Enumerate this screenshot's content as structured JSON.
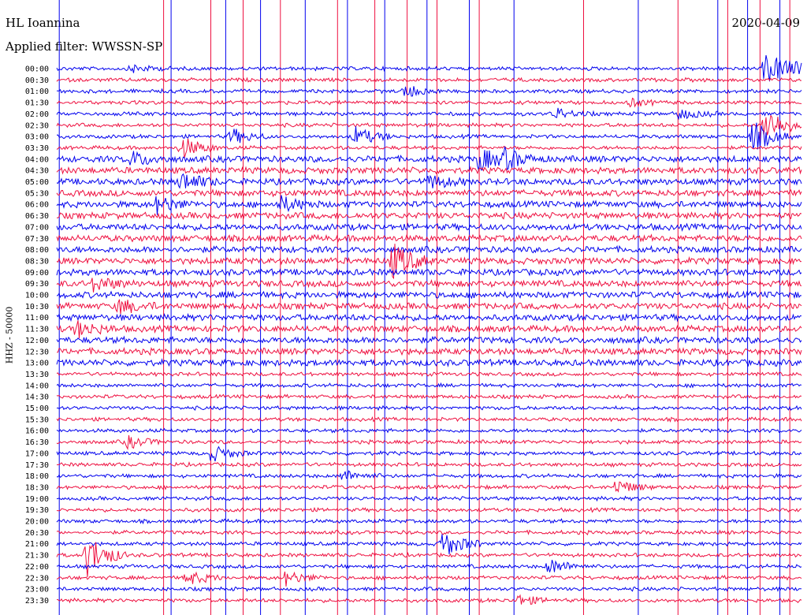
{
  "header": {
    "station": "HL Ioannina",
    "filter": "Applied filter: WWSSN-SP",
    "date": "2020-04-09",
    "channel": "HHZ - 50000"
  },
  "colors": {
    "even_trace": "#0000ee",
    "odd_trace": "#ee1040",
    "text": "#000000"
  },
  "chart_data": {
    "type": "line",
    "title": "HL Ioannina",
    "subtitle": "Applied filter: WWSSN-SP",
    "ylabel": "HHZ - 50000",
    "xlabel": "",
    "rows": [
      "00:00",
      "00:30",
      "01:00",
      "01:30",
      "02:00",
      "02:30",
      "03:00",
      "03:30",
      "04:00",
      "04:30",
      "05:00",
      "05:30",
      "06:00",
      "06:30",
      "07:00",
      "07:30",
      "08:00",
      "08:30",
      "09:00",
      "09:30",
      "10:00",
      "10:30",
      "11:00",
      "11:30",
      "12:00",
      "12:30",
      "13:00",
      "13:30",
      "14:00",
      "14:30",
      "15:00",
      "15:30",
      "16:00",
      "16:30",
      "17:00",
      "17:30",
      "18:00",
      "18:30",
      "19:00",
      "19:30",
      "20:00",
      "20:30",
      "21:00",
      "21:30",
      "22:00",
      "22:30",
      "23:00",
      "23:30"
    ],
    "row_duration_minutes": 30,
    "events": [
      {
        "row": "00:00",
        "minute": 3,
        "amp": 5
      },
      {
        "row": "01:00",
        "minute": 14,
        "amp": 8
      },
      {
        "row": "01:30",
        "minute": 23,
        "amp": 5
      },
      {
        "row": "02:00",
        "minute": 20,
        "amp": 7
      },
      {
        "row": "02:00",
        "minute": 25,
        "amp": 7
      },
      {
        "row": "00:00",
        "minute": 28.5,
        "amp": 18,
        "duration": 3
      },
      {
        "row": "02:30",
        "minute": 28.5,
        "amp": 24
      },
      {
        "row": "03:00",
        "minute": 28,
        "amp": 20
      },
      {
        "row": "03:00",
        "minute": 7,
        "amp": 10
      },
      {
        "row": "03:00",
        "minute": 12,
        "amp": 12
      },
      {
        "row": "03:30",
        "minute": 5,
        "amp": 14
      },
      {
        "row": "04:00",
        "minute": 3,
        "amp": 9
      },
      {
        "row": "04:00",
        "minute": 17,
        "amp": 14
      },
      {
        "row": "04:00",
        "minute": 18,
        "amp": 10
      },
      {
        "row": "05:00",
        "minute": 5,
        "amp": 12
      },
      {
        "row": "05:00",
        "minute": 15,
        "amp": 8
      },
      {
        "row": "06:00",
        "minute": 4,
        "amp": 10
      },
      {
        "row": "06:00",
        "minute": 9,
        "amp": 9
      },
      {
        "row": "08:30",
        "minute": 13.5,
        "amp": 22
      },
      {
        "row": "09:30",
        "minute": 1.5,
        "amp": 9
      },
      {
        "row": "10:30",
        "minute": 2.5,
        "amp": 9
      },
      {
        "row": "11:30",
        "minute": 0.8,
        "amp": 10
      },
      {
        "row": "16:30",
        "minute": 2.8,
        "amp": 8
      },
      {
        "row": "17:00",
        "minute": 6.2,
        "amp": 10
      },
      {
        "row": "18:00",
        "minute": 11.5,
        "amp": 7
      },
      {
        "row": "18:30",
        "minute": 22.5,
        "amp": 9
      },
      {
        "row": "21:30",
        "minute": 1.2,
        "amp": 28
      },
      {
        "row": "21:00",
        "minute": 15.5,
        "amp": 18
      },
      {
        "row": "22:00",
        "minute": 19.8,
        "amp": 10
      },
      {
        "row": "22:30",
        "minute": 5.2,
        "amp": 9
      },
      {
        "row": "22:30",
        "minute": 9.2,
        "amp": 9
      },
      {
        "row": "23:30",
        "minute": 18.5,
        "amp": 7
      }
    ],
    "spikes_minutes": [
      0.1,
      4.3,
      4.6,
      6.2,
      6.8,
      7.5,
      8.2,
      9.0,
      10.0,
      11.3,
      11.7,
      12.8,
      13.2,
      14.1,
      14.9,
      15.3,
      16.6,
      17.0,
      18.4,
      21.2,
      23.4,
      25.0,
      26.6,
      27.0,
      27.8,
      28.3,
      29.1,
      29.5
    ],
    "grid": false,
    "legend": "none"
  }
}
